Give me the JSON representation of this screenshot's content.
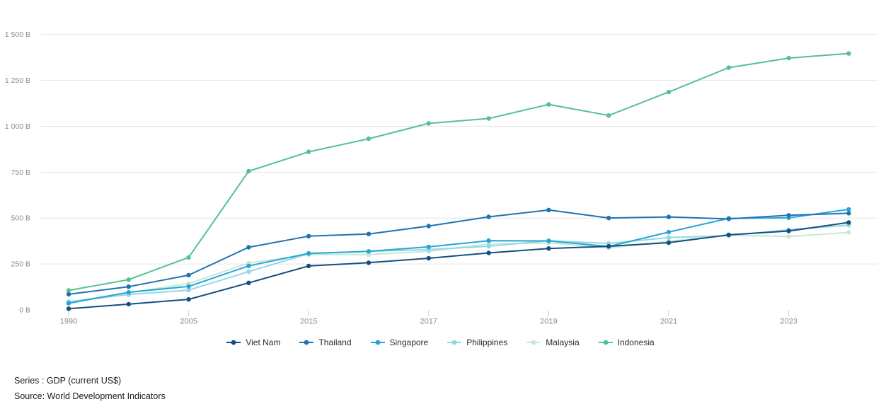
{
  "chart_data": {
    "type": "line",
    "title": "",
    "xlabel": "",
    "ylabel": "",
    "ylim": [
      0,
      1500
    ],
    "grid": "horizontal",
    "legend_position": "bottom",
    "unit": "B",
    "x": [
      1990,
      2000,
      2005,
      2010,
      2015,
      2016,
      2017,
      2018,
      2019,
      2020,
      2021,
      2022,
      2023,
      2024
    ],
    "x_axis_ticks": [
      {
        "year": 1990,
        "label": "1990"
      },
      {
        "year": 2005,
        "label": "2005"
      },
      {
        "year": 2015,
        "label": "2015"
      },
      {
        "year": 2017,
        "label": "2017"
      },
      {
        "year": 2019,
        "label": "2019"
      },
      {
        "year": 2021,
        "label": "2021"
      },
      {
        "year": 2023,
        "label": "2023"
      }
    ],
    "y_axis_ticks": [
      {
        "value": 0,
        "label": "0 B"
      },
      {
        "value": 250,
        "label": "250 B"
      },
      {
        "value": 500,
        "label": "500 B"
      },
      {
        "value": 750,
        "label": "750 B"
      },
      {
        "value": 1000,
        "label": "1 000 B"
      },
      {
        "value": 1250,
        "label": "1 250 B"
      },
      {
        "value": 1500,
        "label": "1 500 B"
      }
    ],
    "series": [
      {
        "name": "Viet Nam",
        "color": "#154f7f",
        "values": [
          6.5,
          31.2,
          57.6,
          147.2,
          239.3,
          257.1,
          281.4,
          310.1,
          334.4,
          346.3,
          366.1,
          408.8,
          429.7,
          476.3
        ]
      },
      {
        "name": "Thailand",
        "color": "#1e73b1",
        "values": [
          85.3,
          126.4,
          189.3,
          341.1,
          401.3,
          413.4,
          456.4,
          506.5,
          544.1,
          500.5,
          506.3,
          495.4,
          515.0,
          526.5
        ]
      },
      {
        "name": "Singapore",
        "color": "#27a4d6",
        "values": [
          36.2,
          96.1,
          127.8,
          239.8,
          308.0,
          318.8,
          343.2,
          376.9,
          375.5,
          345.3,
          423.8,
          498.5,
          501.4,
          547.4
        ]
      },
      {
        "name": "Philippines",
        "color": "#93d6e9",
        "values": [
          44.3,
          83.7,
          107.4,
          208.4,
          306.4,
          318.6,
          328.5,
          346.8,
          376.8,
          361.8,
          394.1,
          404.3,
          437.1,
          461.6
        ]
      },
      {
        "name": "Malaysia",
        "color": "#c4ead2",
        "values": [
          44.0,
          93.8,
          143.5,
          255.0,
          301.4,
          301.3,
          319.1,
          358.8,
          365.2,
          337.3,
          373.8,
          407.0,
          399.7,
          422.1
        ]
      },
      {
        "name": "Indonesia",
        "color": "#53c28e",
        "values": [
          106.1,
          165.0,
          285.9,
          755.1,
          860.9,
          931.9,
          1015.6,
          1042.3,
          1119.1,
          1058.7,
          1186.5,
          1319.1,
          1371.2,
          1396.3
        ]
      }
    ]
  },
  "footer": {
    "series_note": "Series : GDP (current US$)",
    "source_note": "Source: World Development Indicators"
  },
  "style": {
    "grid_color": "#e4e4e4",
    "tick_color": "#cfcfcf",
    "axis_text_color": "#8a8a8a",
    "legend_text_color": "#2b2b2b",
    "footer_text_color": "#1c1c1c",
    "background": "#ffffff"
  }
}
